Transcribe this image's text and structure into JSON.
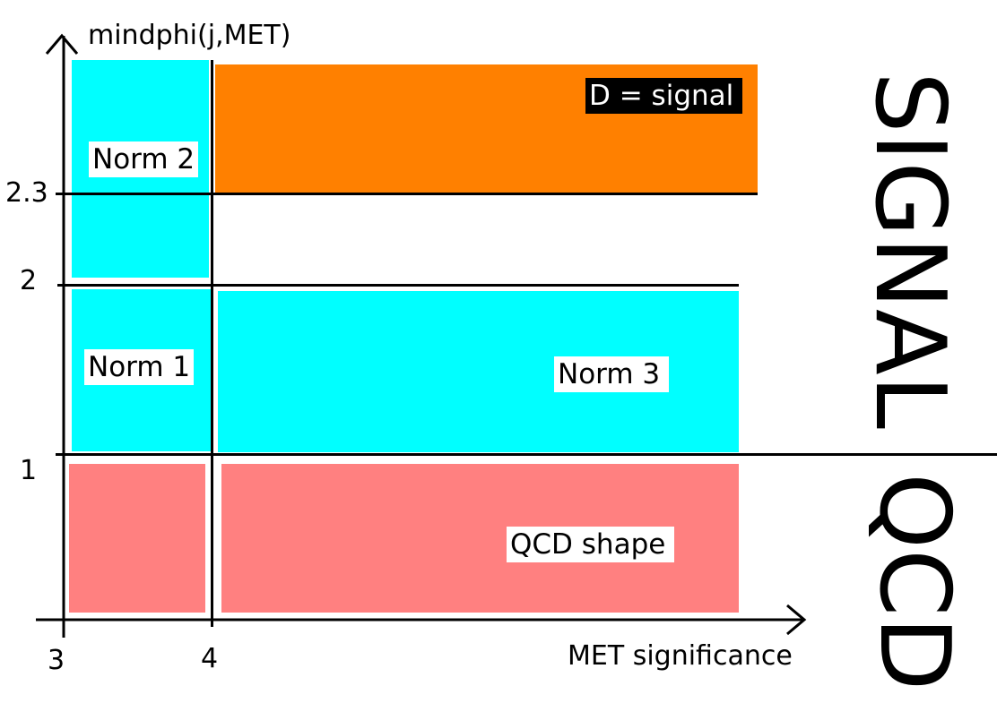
{
  "axes": {
    "y_label": "mindphi(j,MET)",
    "x_label": "MET significance",
    "y_ticks": [
      "2.3",
      "2",
      "1"
    ],
    "x_ticks": [
      "3",
      "4"
    ]
  },
  "regions": {
    "norm2": "Norm 2",
    "norm1": "Norm 1",
    "norm3": "Norm 3",
    "signal_d": "D = signal",
    "qcd_shape": "QCD shape"
  },
  "side_labels": {
    "signal": "SIGNAL",
    "qcd": "QCD"
  },
  "colors": {
    "cyan": "#00ffff",
    "orange": "#ff8000",
    "salmon": "#ff8080",
    "axis": "#000000"
  }
}
